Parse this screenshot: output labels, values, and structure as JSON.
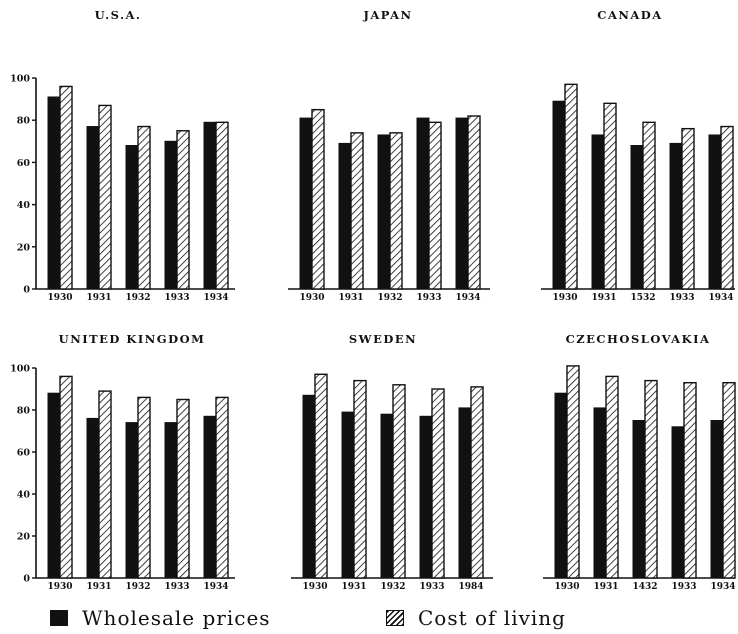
{
  "chart_data": [
    {
      "type": "bar",
      "title": "U.S.A.",
      "categories": [
        "1930",
        "1931",
        "1932",
        "1933",
        "1934"
      ],
      "series": [
        {
          "name": "Wholesale prices",
          "values": [
            91,
            77,
            68,
            70,
            79
          ]
        },
        {
          "name": "Cost of living",
          "values": [
            96,
            87,
            77,
            75,
            79
          ]
        }
      ],
      "ylim": [
        0,
        100
      ],
      "yticks": [
        "0",
        "20",
        "40",
        "60",
        "80",
        "100"
      ]
    },
    {
      "type": "bar",
      "title": "JAPAN",
      "categories": [
        "1930",
        "1931",
        "1932",
        "1933",
        "1934"
      ],
      "series": [
        {
          "name": "Wholesale prices",
          "values": [
            81,
            69,
            73,
            81,
            81
          ]
        },
        {
          "name": "Cost of living",
          "values": [
            85,
            74,
            74,
            79,
            82
          ]
        }
      ],
      "ylim": [
        0,
        100
      ],
      "yticks": []
    },
    {
      "type": "bar",
      "title": "CANADA",
      "categories": [
        "1930",
        "1931",
        "1532",
        "1933",
        "1934"
      ],
      "series": [
        {
          "name": "Wholesale prices",
          "values": [
            89,
            73,
            68,
            69,
            73
          ]
        },
        {
          "name": "Cost of living",
          "values": [
            97,
            88,
            79,
            76,
            77
          ]
        }
      ],
      "ylim": [
        0,
        100
      ],
      "yticks": []
    },
    {
      "type": "bar",
      "title": "UNITED KINGDOM",
      "categories": [
        "1930",
        "1931",
        "1932",
        "1933",
        "1934"
      ],
      "series": [
        {
          "name": "Wholesale prices",
          "values": [
            88,
            76,
            74,
            74,
            77
          ]
        },
        {
          "name": "Cost of living",
          "values": [
            96,
            89,
            86,
            85,
            86
          ]
        }
      ],
      "ylim": [
        0,
        100
      ],
      "yticks": [
        "0",
        "20",
        "40",
        "60",
        "80",
        "100"
      ]
    },
    {
      "type": "bar",
      "title": "SWEDEN",
      "categories": [
        "1930",
        "1931",
        "1932",
        "1933",
        "1984"
      ],
      "series": [
        {
          "name": "Wholesale prices",
          "values": [
            87,
            79,
            78,
            77,
            81
          ]
        },
        {
          "name": "Cost of living",
          "values": [
            97,
            94,
            92,
            90,
            91
          ]
        }
      ],
      "ylim": [
        0,
        100
      ],
      "yticks": []
    },
    {
      "type": "bar",
      "title": "CZECHOSLOVAKIA",
      "categories": [
        "1930",
        "1931",
        "1432",
        "1933",
        "1934"
      ],
      "series": [
        {
          "name": "Wholesale prices",
          "values": [
            88,
            81,
            75,
            72,
            75
          ]
        },
        {
          "name": "Cost of living",
          "values": [
            101,
            96,
            94,
            93,
            93
          ]
        }
      ],
      "ylim": [
        0,
        100
      ],
      "yticks": []
    }
  ],
  "legend": {
    "wholesale_label": "Wholesale prices",
    "cost_label": "Cost of living"
  },
  "colors": {
    "ink": "#111111",
    "paper": "#ffffff"
  }
}
